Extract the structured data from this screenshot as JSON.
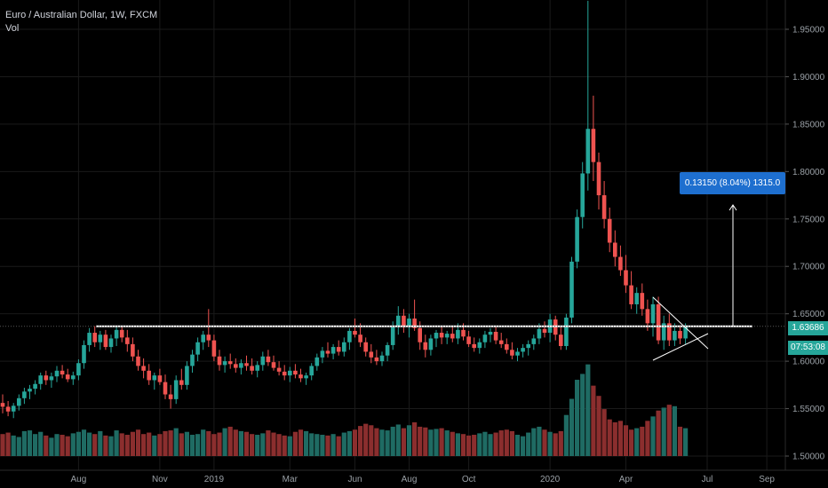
{
  "header": {
    "symbol_line": "Euro / Australian Dollar, 1W, FXCM",
    "indicator": "Vol"
  },
  "price_label": "1.63686",
  "countdown_label": "07:53:08",
  "measure_label": "0.13150 (8.04%) 1315.0",
  "colors": {
    "background": "#000000",
    "up": "#26a69a",
    "down": "#ef5350",
    "vol_up": "#1f6b63",
    "vol_down": "#8b2e2e",
    "grid": "#1a1a1a",
    "line": "#ffffff",
    "measure": "#1e6fcf"
  },
  "chart_data": {
    "type": "candlestick",
    "title": "Euro / Australian Dollar, 1W, FXCM",
    "ylim": [
      1.5,
      1.98
    ],
    "y_ticks": [
      "1.50000",
      "1.55000",
      "1.60000",
      "1.65000",
      "1.70000",
      "1.75000",
      "1.80000",
      "1.85000",
      "1.90000",
      "1.95000"
    ],
    "y_tick_values": [
      1.5,
      1.55,
      1.6,
      1.65,
      1.7,
      1.75,
      1.8,
      1.85,
      1.9,
      1.95
    ],
    "x_ticks": [
      "Aug",
      "Nov",
      "2019",
      "Mar",
      "Jun",
      "Aug",
      "Oct",
      "2020",
      "Apr",
      "Jul",
      "Sep"
    ],
    "x_tick_index": [
      14,
      29,
      39,
      53,
      65,
      75,
      86,
      101,
      115,
      130,
      141
    ],
    "horizontal_level": 1.6368,
    "candles": [
      [
        1.556,
        1.565,
        1.545,
        1.552
      ],
      [
        1.552,
        1.558,
        1.542,
        1.547
      ],
      [
        1.547,
        1.556,
        1.54,
        1.553
      ],
      [
        1.553,
        1.565,
        1.548,
        1.561
      ],
      [
        1.561,
        1.572,
        1.555,
        1.568
      ],
      [
        1.568,
        1.575,
        1.56,
        1.571
      ],
      [
        1.571,
        1.58,
        1.565,
        1.576
      ],
      [
        1.576,
        1.588,
        1.57,
        1.585
      ],
      [
        1.585,
        1.59,
        1.575,
        1.58
      ],
      [
        1.58,
        1.588,
        1.572,
        1.584
      ],
      [
        1.584,
        1.595,
        1.578,
        1.59
      ],
      [
        1.59,
        1.596,
        1.582,
        1.586
      ],
      [
        1.586,
        1.592,
        1.578,
        1.581
      ],
      [
        1.581,
        1.589,
        1.575,
        1.585
      ],
      [
        1.585,
        1.602,
        1.58,
        1.598
      ],
      [
        1.598,
        1.622,
        1.592,
        1.617
      ],
      [
        1.617,
        1.635,
        1.61,
        1.63
      ],
      [
        1.63,
        1.637,
        1.615,
        1.62
      ],
      [
        1.62,
        1.632,
        1.612,
        1.628
      ],
      [
        1.628,
        1.633,
        1.612,
        1.615
      ],
      [
        1.615,
        1.628,
        1.609,
        1.624
      ],
      [
        1.624,
        1.637,
        1.616,
        1.633
      ],
      [
        1.633,
        1.637,
        1.62,
        1.625
      ],
      [
        1.625,
        1.633,
        1.61,
        1.618
      ],
      [
        1.618,
        1.625,
        1.6,
        1.605
      ],
      [
        1.605,
        1.612,
        1.59,
        1.595
      ],
      [
        1.595,
        1.603,
        1.582,
        1.59
      ],
      [
        1.59,
        1.597,
        1.575,
        1.58
      ],
      [
        1.58,
        1.588,
        1.57,
        1.585
      ],
      [
        1.585,
        1.592,
        1.575,
        1.578
      ],
      [
        1.578,
        1.586,
        1.56,
        1.565
      ],
      [
        1.565,
        1.575,
        1.55,
        1.56
      ],
      [
        1.56,
        1.585,
        1.555,
        1.58
      ],
      [
        1.58,
        1.592,
        1.57,
        1.575
      ],
      [
        1.575,
        1.6,
        1.57,
        1.595
      ],
      [
        1.595,
        1.612,
        1.588,
        1.607
      ],
      [
        1.607,
        1.625,
        1.6,
        1.62
      ],
      [
        1.62,
        1.632,
        1.612,
        1.628
      ],
      [
        1.628,
        1.655,
        1.615,
        1.622
      ],
      [
        1.622,
        1.628,
        1.6,
        1.605
      ],
      [
        1.605,
        1.612,
        1.59,
        1.596
      ],
      [
        1.596,
        1.605,
        1.588,
        1.6
      ],
      [
        1.6,
        1.608,
        1.592,
        1.597
      ],
      [
        1.597,
        1.603,
        1.588,
        1.593
      ],
      [
        1.593,
        1.602,
        1.586,
        1.598
      ],
      [
        1.598,
        1.606,
        1.59,
        1.595
      ],
      [
        1.595,
        1.603,
        1.586,
        1.59
      ],
      [
        1.59,
        1.6,
        1.583,
        1.596
      ],
      [
        1.596,
        1.61,
        1.59,
        1.605
      ],
      [
        1.605,
        1.612,
        1.595,
        1.599
      ],
      [
        1.599,
        1.606,
        1.59,
        1.593
      ],
      [
        1.593,
        1.6,
        1.585,
        1.589
      ],
      [
        1.589,
        1.596,
        1.58,
        1.585
      ],
      [
        1.585,
        1.594,
        1.578,
        1.59
      ],
      [
        1.59,
        1.597,
        1.582,
        1.586
      ],
      [
        1.586,
        1.592,
        1.578,
        1.582
      ],
      [
        1.582,
        1.588,
        1.575,
        1.585
      ],
      [
        1.585,
        1.598,
        1.58,
        1.595
      ],
      [
        1.595,
        1.608,
        1.59,
        1.604
      ],
      [
        1.604,
        1.615,
        1.598,
        1.611
      ],
      [
        1.611,
        1.62,
        1.604,
        1.608
      ],
      [
        1.608,
        1.618,
        1.602,
        1.615
      ],
      [
        1.615,
        1.622,
        1.606,
        1.61
      ],
      [
        1.61,
        1.625,
        1.605,
        1.62
      ],
      [
        1.62,
        1.635,
        1.612,
        1.632
      ],
      [
        1.632,
        1.645,
        1.625,
        1.628
      ],
      [
        1.628,
        1.64,
        1.615,
        1.62
      ],
      [
        1.62,
        1.625,
        1.605,
        1.61
      ],
      [
        1.61,
        1.618,
        1.598,
        1.604
      ],
      [
        1.604,
        1.612,
        1.596,
        1.6
      ],
      [
        1.6,
        1.61,
        1.595,
        1.606
      ],
      [
        1.606,
        1.62,
        1.6,
        1.617
      ],
      [
        1.617,
        1.642,
        1.612,
        1.636
      ],
      [
        1.636,
        1.658,
        1.628,
        1.648
      ],
      [
        1.648,
        1.655,
        1.63,
        1.636
      ],
      [
        1.636,
        1.65,
        1.625,
        1.645
      ],
      [
        1.645,
        1.665,
        1.632,
        1.635
      ],
      [
        1.635,
        1.642,
        1.612,
        1.62
      ],
      [
        1.62,
        1.628,
        1.604,
        1.612
      ],
      [
        1.612,
        1.628,
        1.606,
        1.624
      ],
      [
        1.624,
        1.633,
        1.615,
        1.63
      ],
      [
        1.63,
        1.637,
        1.618,
        1.625
      ],
      [
        1.625,
        1.632,
        1.618,
        1.629
      ],
      [
        1.629,
        1.636,
        1.62,
        1.624
      ],
      [
        1.624,
        1.64,
        1.618,
        1.633
      ],
      [
        1.633,
        1.64,
        1.622,
        1.626
      ],
      [
        1.626,
        1.632,
        1.615,
        1.618
      ],
      [
        1.618,
        1.625,
        1.61,
        1.614
      ],
      [
        1.614,
        1.624,
        1.608,
        1.62
      ],
      [
        1.62,
        1.632,
        1.614,
        1.628
      ],
      [
        1.628,
        1.635,
        1.62,
        1.631
      ],
      [
        1.631,
        1.636,
        1.618,
        1.622
      ],
      [
        1.622,
        1.63,
        1.614,
        1.618
      ],
      [
        1.618,
        1.624,
        1.608,
        1.612
      ],
      [
        1.612,
        1.62,
        1.602,
        1.606
      ],
      [
        1.606,
        1.614,
        1.6,
        1.61
      ],
      [
        1.61,
        1.618,
        1.604,
        1.614
      ],
      [
        1.614,
        1.622,
        1.606,
        1.618
      ],
      [
        1.618,
        1.628,
        1.612,
        1.624
      ],
      [
        1.624,
        1.64,
        1.618,
        1.634
      ],
      [
        1.634,
        1.642,
        1.625,
        1.63
      ],
      [
        1.63,
        1.65,
        1.62,
        1.644
      ],
      [
        1.644,
        1.648,
        1.622,
        1.628
      ],
      [
        1.628,
        1.637,
        1.612,
        1.616
      ],
      [
        1.616,
        1.65,
        1.612,
        1.646
      ],
      [
        1.646,
        1.71,
        1.64,
        1.705
      ],
      [
        1.705,
        1.76,
        1.698,
        1.752
      ],
      [
        1.752,
        1.81,
        1.74,
        1.798
      ],
      [
        1.798,
        1.98,
        1.78,
        1.845
      ],
      [
        1.845,
        1.88,
        1.79,
        1.81
      ],
      [
        1.81,
        1.82,
        1.76,
        1.775
      ],
      [
        1.775,
        1.79,
        1.74,
        1.75
      ],
      [
        1.75,
        1.762,
        1.715,
        1.725
      ],
      [
        1.725,
        1.738,
        1.7,
        1.71
      ],
      [
        1.71,
        1.722,
        1.69,
        1.696
      ],
      [
        1.696,
        1.712,
        1.672,
        1.68
      ],
      [
        1.68,
        1.695,
        1.655,
        1.66
      ],
      [
        1.66,
        1.678,
        1.65,
        1.672
      ],
      [
        1.672,
        1.682,
        1.648,
        1.655
      ],
      [
        1.655,
        1.665,
        1.632,
        1.64
      ],
      [
        1.64,
        1.668,
        1.626,
        1.66
      ],
      [
        1.66,
        1.668,
        1.618,
        1.622
      ],
      [
        1.622,
        1.648,
        1.612,
        1.64
      ],
      [
        1.64,
        1.65,
        1.616,
        1.622
      ],
      [
        1.622,
        1.64,
        1.616,
        1.632
      ],
      [
        1.632,
        1.638,
        1.618,
        1.624
      ],
      [
        1.624,
        1.64,
        1.618,
        1.637
      ]
    ],
    "volume_ylim": [
      0,
      150
    ],
    "volume": [
      30,
      32,
      28,
      26,
      34,
      35,
      30,
      33,
      28,
      25,
      30,
      29,
      27,
      31,
      33,
      36,
      32,
      30,
      34,
      28,
      27,
      35,
      31,
      29,
      33,
      36,
      30,
      32,
      28,
      30,
      34,
      35,
      38,
      31,
      33,
      29,
      30,
      36,
      34,
      30,
      32,
      38,
      40,
      36,
      34,
      33,
      30,
      29,
      31,
      35,
      32,
      30,
      28,
      27,
      33,
      36,
      34,
      31,
      30,
      29,
      28,
      30,
      27,
      32,
      34,
      36,
      41,
      44,
      42,
      38,
      36,
      35,
      40,
      43,
      38,
      42,
      46,
      40,
      39,
      36,
      37,
      38,
      35,
      33,
      31,
      30,
      28,
      29,
      31,
      33,
      30,
      32,
      35,
      36,
      34,
      29,
      27,
      32,
      38,
      40,
      36,
      33,
      31,
      34,
      56,
      78,
      104,
      112,
      125,
      96,
      82,
      64,
      50,
      46,
      48,
      42,
      36,
      38,
      40,
      48,
      54,
      62,
      66,
      70,
      68,
      40,
      38
    ]
  }
}
